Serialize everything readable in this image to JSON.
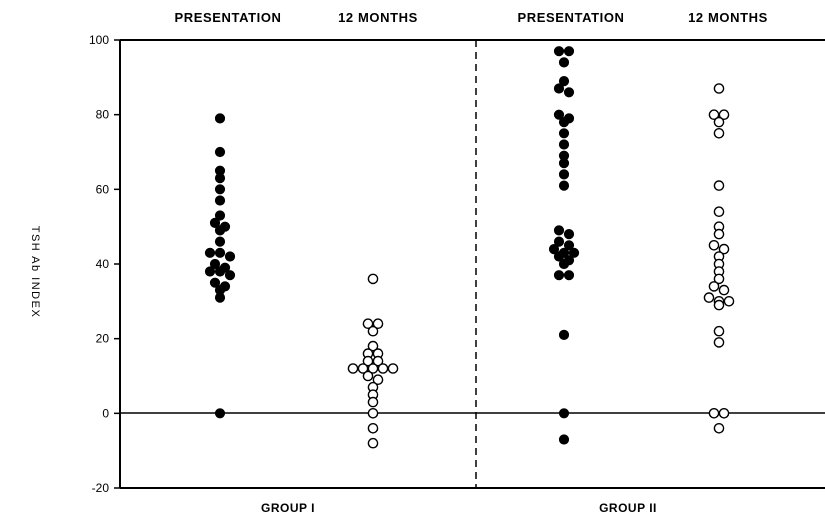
{
  "chart_data": {
    "type": "scatter",
    "ylabel": "TSH Ab INDEX",
    "ylim": [
      -20,
      100
    ],
    "yticks": [
      "100",
      "80",
      "60",
      "40",
      "20",
      "0",
      "-20"
    ],
    "ytick_values": [
      100,
      80,
      60,
      40,
      20,
      0,
      -20
    ],
    "grid": false,
    "groups": [
      "GROUP I",
      "GROUP II"
    ],
    "column_headers": [
      "PRESENTATION",
      "12 MONTHS",
      "PRESENTATION",
      "12 MONTHS"
    ],
    "series": [
      {
        "group": "GROUP I",
        "label": "PRESENTATION",
        "marker": "filled",
        "values": [
          79,
          70,
          65,
          63,
          60,
          57,
          53,
          51,
          50,
          49,
          46,
          43,
          43,
          42,
          40,
          39,
          38,
          38,
          37,
          35,
          34,
          33,
          31,
          0
        ]
      },
      {
        "group": "GROUP I",
        "label": "12 MONTHS",
        "marker": "open",
        "values": [
          36,
          24,
          24,
          22,
          18,
          16,
          16,
          14,
          14,
          12,
          12,
          12,
          12,
          12,
          10,
          9,
          7,
          5,
          3,
          0,
          -4,
          -8
        ]
      },
      {
        "group": "GROUP II",
        "label": "PRESENTATION",
        "marker": "filled",
        "values": [
          97,
          97,
          94,
          89,
          87,
          86,
          80,
          79,
          78,
          75,
          72,
          69,
          67,
          64,
          61,
          49,
          48,
          46,
          45,
          44,
          43,
          43,
          42,
          41,
          40,
          37,
          37,
          21,
          0,
          -7
        ]
      },
      {
        "group": "GROUP II",
        "label": "12 MONTHS",
        "marker": "open",
        "values": [
          87,
          80,
          80,
          78,
          75,
          61,
          54,
          50,
          48,
          45,
          44,
          42,
          40,
          38,
          36,
          34,
          33,
          31,
          30,
          30,
          29,
          22,
          19,
          0,
          0,
          -4
        ]
      }
    ]
  }
}
